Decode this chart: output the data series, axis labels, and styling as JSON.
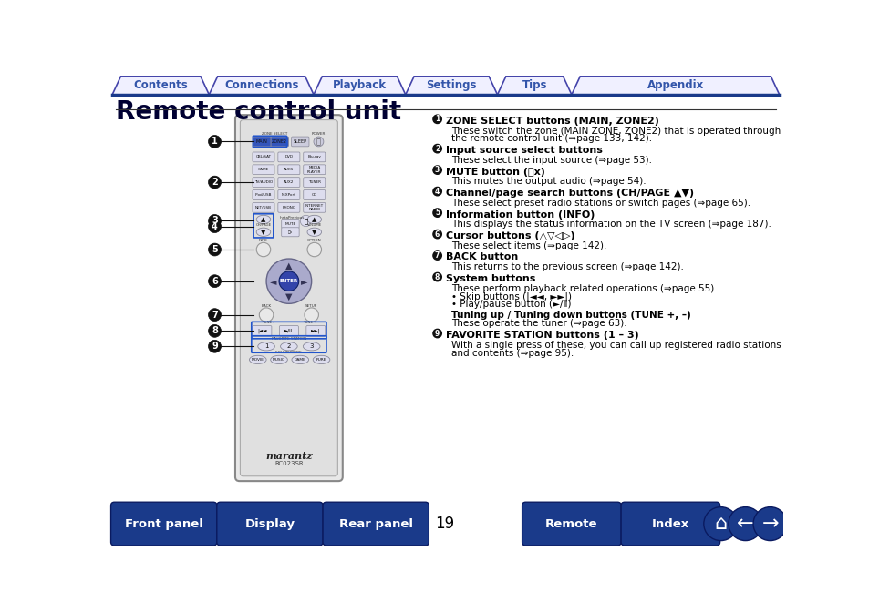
{
  "title": "Remote control unit",
  "page_number": "19",
  "nav_tabs": [
    "Contents",
    "Connections",
    "Playback",
    "Settings",
    "Tips",
    "Appendix"
  ],
  "bottom_buttons": [
    "Front panel",
    "Display",
    "Rear panel",
    "Remote",
    "Index"
  ],
  "tab_color": "#4444aa",
  "tab_text_color": "#3355aa",
  "bottom_btn_color": "#1a3a8a",
  "bottom_btn_text_color": "#ffffff",
  "bg_color": "#ffffff",
  "items": [
    {
      "num": "1",
      "heading": "ZONE SELECT buttons (MAIN, ZONE2)",
      "body_lines": [
        {
          "text": "These switch the zone (MAIN ZONE, ZONE2) that is operated through",
          "bold": false
        },
        {
          "text": "the remote control unit (⇒page 133, 142).",
          "bold": false
        }
      ]
    },
    {
      "num": "2",
      "heading": "Input source select buttons",
      "body_lines": [
        {
          "text": "These select the input source (⇒page 53).",
          "bold": false
        }
      ]
    },
    {
      "num": "3",
      "heading": "MUTE button (⦚x)",
      "body_lines": [
        {
          "text": "This mutes the output audio (⇒page 54).",
          "bold": false
        }
      ]
    },
    {
      "num": "4",
      "heading": "Channel/page search buttons (CH/PAGE ▲▼)",
      "body_lines": [
        {
          "text": "These select preset radio stations or switch pages (⇒page 65).",
          "bold": false
        }
      ]
    },
    {
      "num": "5",
      "heading": "Information button (INFO)",
      "body_lines": [
        {
          "text": "This displays the status information on the TV screen (⇒page 187).",
          "bold": false
        }
      ]
    },
    {
      "num": "6",
      "heading": "Cursor buttons (△▽◁▷)",
      "body_lines": [
        {
          "text": "These select items (⇒page 142).",
          "bold": false
        }
      ]
    },
    {
      "num": "7",
      "heading": "BACK button",
      "body_lines": [
        {
          "text": "This returns to the previous screen (⇒page 142).",
          "bold": false
        }
      ]
    },
    {
      "num": "8",
      "heading": "System buttons",
      "body_lines": [
        {
          "text": "These perform playback related operations (⇒page 55).",
          "bold": false
        },
        {
          "text": "• Skip buttons (|◄◄, ►►|)",
          "bold": false
        },
        {
          "text": "• Play/pause button (►/Ⅱ)",
          "bold": false
        },
        {
          "text": "",
          "bold": false
        },
        {
          "text": "Tuning up / Tuning down buttons (TUNE +, –)",
          "bold": true
        },
        {
          "text": "These operate the tuner (⇒page 63).",
          "bold": false
        }
      ]
    },
    {
      "num": "9",
      "heading": "FAVORITE STATION buttons (1 – 3)",
      "body_lines": [
        {
          "text": "With a single press of these, you can call up registered radio stations",
          "bold": false
        },
        {
          "text": "and contents (⇒page 95).",
          "bold": false
        }
      ]
    }
  ]
}
